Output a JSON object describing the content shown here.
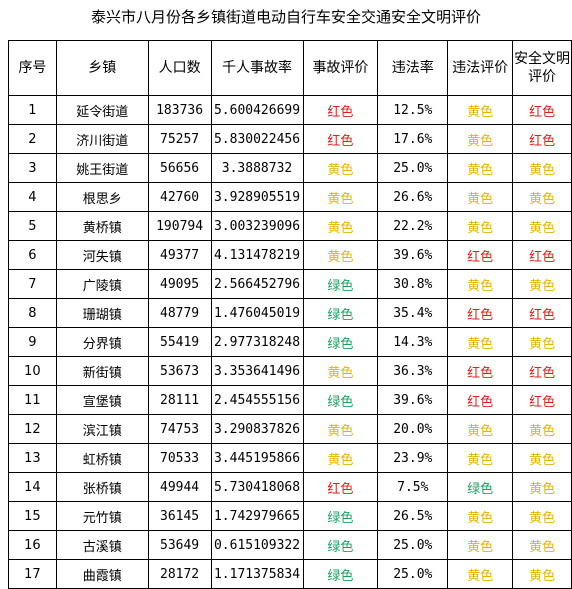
{
  "title": "泰兴市八月份各乡镇街道电动自行车安全交通安全文明评价",
  "colors": {
    "红色": "#e0201b",
    "黄色": "#e6b400",
    "绿色": "#1aa260"
  },
  "headers": [
    "序号",
    "乡镇",
    "人口数",
    "千人事故率",
    "事故评价",
    "违法率",
    "违法评价",
    "安全文明评价"
  ],
  "rows": [
    [
      "1",
      "延令街道",
      "183736",
      "5.600426699",
      "红色",
      "12.5%",
      "黄色",
      "红色"
    ],
    [
      "2",
      "济川街道",
      "75257",
      "5.830022456",
      "红色",
      "17.6%",
      "黄色",
      "红色"
    ],
    [
      "3",
      "姚王街道",
      "56656",
      "3.3888732",
      "黄色",
      "25.0%",
      "黄色",
      "黄色"
    ],
    [
      "4",
      "根思乡",
      "42760",
      "3.928905519",
      "黄色",
      "26.6%",
      "黄色",
      "黄色"
    ],
    [
      "5",
      "黄桥镇",
      "190794",
      "3.003239096",
      "黄色",
      "22.2%",
      "黄色",
      "黄色"
    ],
    [
      "6",
      "河失镇",
      "49377",
      "4.131478219",
      "黄色",
      "39.6%",
      "红色",
      "红色"
    ],
    [
      "7",
      "广陵镇",
      "49095",
      "2.566452796",
      "绿色",
      "30.8%",
      "黄色",
      "黄色"
    ],
    [
      "8",
      "珊瑚镇",
      "48779",
      "1.476045019",
      "绿色",
      "35.4%",
      "红色",
      "红色"
    ],
    [
      "9",
      "分界镇",
      "55419",
      "2.977318248",
      "绿色",
      "14.3%",
      "黄色",
      "黄色"
    ],
    [
      "10",
      "新街镇",
      "53673",
      "3.353641496",
      "黄色",
      "36.3%",
      "红色",
      "红色"
    ],
    [
      "11",
      "宣堡镇",
      "28111",
      "2.454555156",
      "绿色",
      "39.6%",
      "红色",
      "红色"
    ],
    [
      "12",
      "滨江镇",
      "74753",
      "3.290837826",
      "黄色",
      "20.0%",
      "黄色",
      "黄色"
    ],
    [
      "13",
      "虹桥镇",
      "70533",
      "3.445195866",
      "黄色",
      "23.9%",
      "黄色",
      "黄色"
    ],
    [
      "14",
      "张桥镇",
      "49944",
      "5.730418068",
      "红色",
      "7.5%",
      "绿色",
      "黄色"
    ],
    [
      "15",
      "元竹镇",
      "36145",
      "1.742979665",
      "绿色",
      "26.5%",
      "黄色",
      "黄色"
    ],
    [
      "16",
      "古溪镇",
      "53649",
      "0.615109322",
      "绿色",
      "25.0%",
      "黄色",
      "黄色"
    ],
    [
      "17",
      "曲霞镇",
      "28172",
      "1.171375834",
      "绿色",
      "25.0%",
      "黄色",
      "黄色"
    ]
  ]
}
